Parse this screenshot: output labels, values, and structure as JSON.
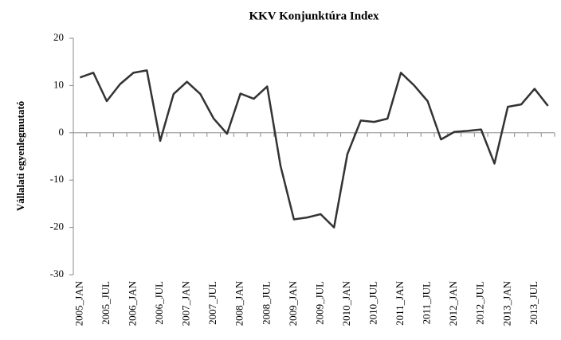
{
  "chart_data": {
    "type": "line",
    "title": "KKV Konjunktúra Index",
    "y_label": "Vállalati egyenlegmutató",
    "categories": [
      "2005_JAN",
      null,
      "2005_JUL",
      null,
      "2006_JAN",
      null,
      "2006_JUL",
      null,
      "2007_JAN",
      null,
      "2007_JUL",
      null,
      "2008_JAN",
      null,
      "2008_JUL",
      null,
      "2009_JAN",
      null,
      "2009_JUL",
      null,
      "2010_JAN",
      null,
      "2010_JUL",
      null,
      "2011_JAN",
      null,
      "2011_JUL",
      null,
      "2012_JAN",
      null,
      "2012_JUL",
      null,
      "2013_JAN",
      null,
      "2013_JUL",
      null
    ],
    "values": [
      11.7,
      12.7,
      6.7,
      10.3,
      12.7,
      13.2,
      -1.7,
      8.2,
      10.8,
      8.2,
      3,
      -0.2,
      8.3,
      7.2,
      9.8,
      -7,
      -18.3,
      -17.9,
      -17.2,
      -20,
      -4.5,
      2.6,
      2.3,
      3,
      12.7,
      10,
      6.7,
      -1.4,
      0.2,
      0.4,
      0.7,
      -6.5,
      5.5,
      6,
      9.3,
      5.7
    ],
    "color": "#333333",
    "ylim": [
      -30,
      20
    ],
    "yticks": [
      -30,
      -20,
      -10,
      0,
      10,
      20
    ],
    "grid": false
  }
}
